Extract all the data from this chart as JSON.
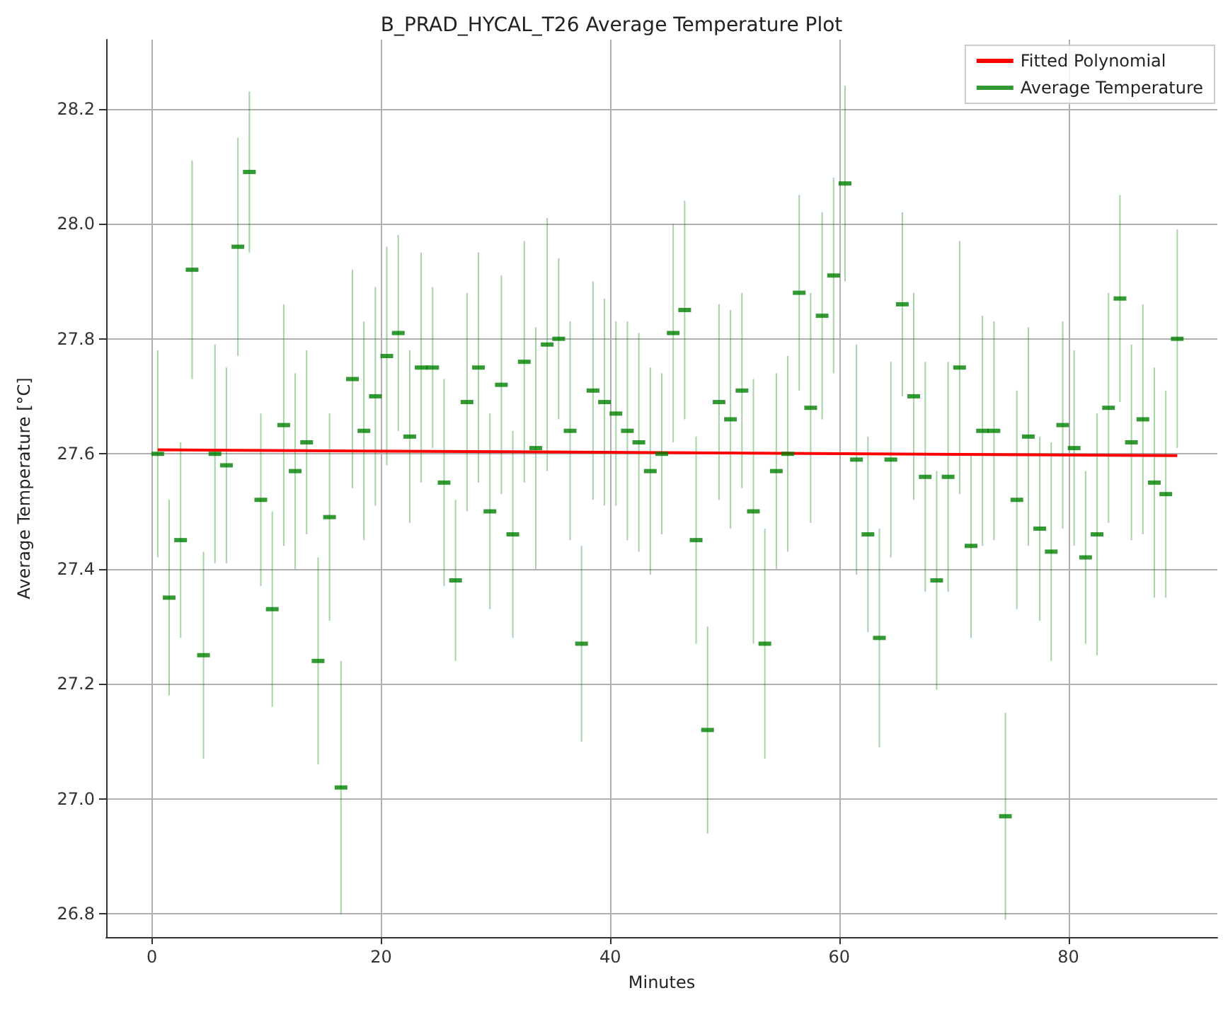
{
  "chart_data": {
    "type": "scatter",
    "title": "B_PRAD_HYCAL_T26 Average Temperature Plot",
    "xlabel": "Minutes",
    "ylabel": "Average Temperature [°C]",
    "xlim": [
      -4,
      93
    ],
    "xticks": [
      0,
      20,
      40,
      60,
      80
    ],
    "ylim": [
      26.76,
      28.32
    ],
    "yticks": [
      26.8,
      {
        "value": 27,
        "label": "27.0"
      },
      27.2,
      27.4,
      27.6,
      27.8,
      {
        "value": 28,
        "label": "28.0"
      },
      28.2
    ],
    "grid": true,
    "legend": "top right",
    "series": [
      {
        "name": "Fitted Polynomial",
        "type": "line",
        "color": "#ff0000",
        "x": [
          0.5,
          89.5
        ],
        "values": [
          27.607,
          27.597
        ]
      },
      {
        "name": "Average Temperature",
        "color": "#008000",
        "x": [
          0.5,
          1.5,
          2.5,
          3.5,
          4.5,
          5.5,
          6.5,
          7.5,
          8.5,
          9.5,
          10.5,
          11.5,
          12.5,
          13.5,
          14.5,
          15.5,
          16.5,
          17.5,
          18.5,
          19.5,
          20.5,
          21.5,
          22.5,
          23.5,
          24.5,
          25.5,
          26.5,
          27.5,
          28.5,
          29.5,
          30.5,
          31.5,
          32.5,
          33.5,
          34.5,
          35.5,
          36.5,
          37.5,
          38.5,
          39.5,
          40.5,
          41.5,
          42.5,
          43.5,
          44.5,
          45.5,
          46.5,
          47.5,
          48.5,
          49.5,
          50.5,
          51.5,
          52.5,
          53.5,
          54.5,
          55.5,
          56.5,
          57.5,
          58.5,
          59.5,
          60.5,
          61.5,
          62.5,
          63.5,
          64.5,
          65.5,
          66.5,
          67.5,
          68.5,
          69.5,
          70.5,
          71.5,
          72.5,
          73.5,
          74.5,
          75.5,
          76.5,
          77.5,
          78.5,
          79.5,
          80.5,
          81.5,
          82.5,
          83.5,
          84.5,
          85.5,
          86.5,
          87.5,
          88.5,
          89.5
        ],
        "values": [
          27.6,
          27.35,
          27.45,
          27.92,
          27.25,
          27.6,
          27.58,
          27.96,
          28.09,
          27.52,
          27.33,
          27.65,
          27.57,
          27.62,
          27.24,
          27.49,
          27.02,
          27.73,
          27.64,
          27.7,
          27.77,
          27.81,
          27.63,
          27.75,
          27.75,
          27.55,
          27.38,
          27.69,
          27.75,
          27.5,
          27.72,
          27.46,
          27.76,
          27.61,
          27.79,
          27.8,
          27.64,
          27.27,
          27.71,
          27.69,
          27.67,
          27.64,
          27.62,
          27.57,
          27.6,
          27.81,
          27.85,
          27.45,
          27.12,
          27.69,
          27.66,
          27.71,
          27.5,
          27.27,
          27.57,
          27.6,
          27.88,
          27.68,
          27.84,
          27.91,
          28.07,
          27.59,
          27.46,
          27.28,
          27.59,
          27.86,
          27.7,
          27.56,
          27.38,
          27.56,
          27.75,
          27.44,
          27.64,
          27.64,
          26.97,
          27.52,
          27.63,
          27.47,
          27.43,
          27.65,
          27.61,
          27.42,
          27.46,
          27.68,
          27.87,
          27.62,
          27.66,
          27.55,
          27.53,
          27.8
        ],
        "errors": [
          0.18,
          0.17,
          0.17,
          0.19,
          0.18,
          0.19,
          0.17,
          0.19,
          0.14,
          0.15,
          0.17,
          0.21,
          0.17,
          0.16,
          0.18,
          0.18,
          0.22,
          0.19,
          0.19,
          0.19,
          0.19,
          0.17,
          0.15,
          0.2,
          0.14,
          0.18,
          0.14,
          0.19,
          0.2,
          0.17,
          0.19,
          0.18,
          0.21,
          0.21,
          0.22,
          0.14,
          0.19,
          0.17,
          0.19,
          0.18,
          0.16,
          0.19,
          0.19,
          0.18,
          0.14,
          0.19,
          0.19,
          0.18,
          0.18,
          0.17,
          0.19,
          0.17,
          0.23,
          0.2,
          0.17,
          0.17,
          0.17,
          0.2,
          0.18,
          0.17,
          0.17,
          0.2,
          0.17,
          0.19,
          0.17,
          0.16,
          0.18,
          0.2,
          0.19,
          0.2,
          0.22,
          0.16,
          0.2,
          0.19,
          0.18,
          0.19,
          0.19,
          0.16,
          0.19,
          0.18,
          0.17,
          0.15,
          0.21,
          0.2,
          0.18,
          0.17,
          0.2,
          0.2,
          0.18,
          0.19
        ]
      }
    ]
  }
}
